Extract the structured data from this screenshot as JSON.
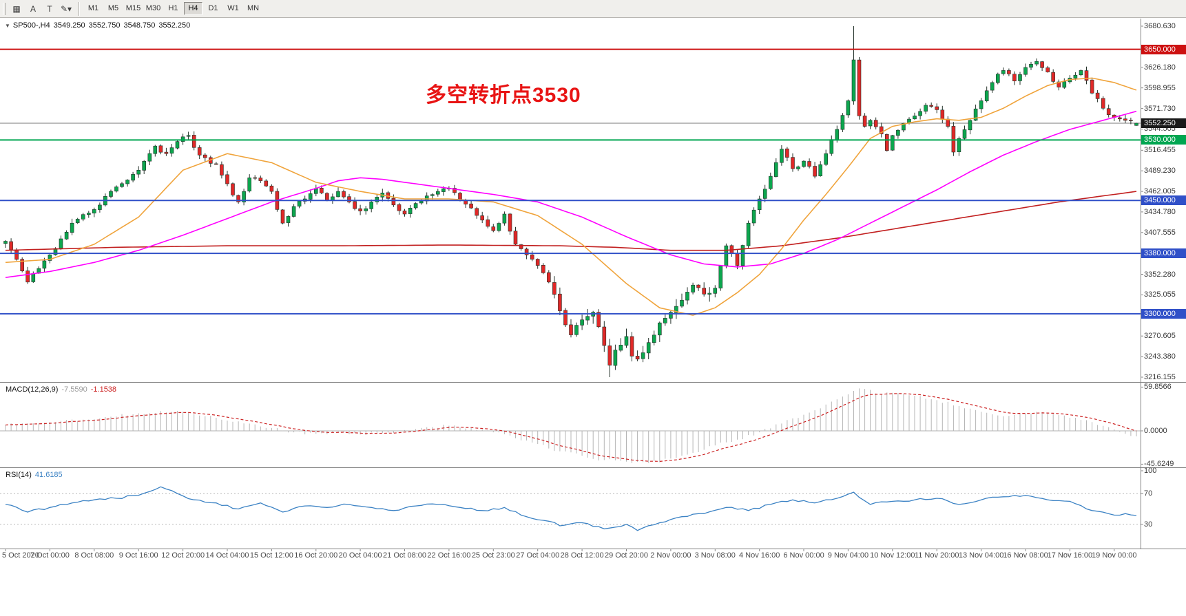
{
  "colors": {
    "up": "#0ca64e",
    "down": "#e02828",
    "candle_border": "#24322a",
    "ma_fast": "#f0a43c",
    "ma_mid": "#ff00ff",
    "ma_slow": "#c22020",
    "hline_red": "#cd1111",
    "hline_green": "#00a651",
    "hline_blue": "#3050c8",
    "price_line": "#787878",
    "price_badge_bg": "#1a1a1a",
    "macd_hist": "#b5b5b5",
    "macd_signal": "#cc2222",
    "rsi_line": "#3b82c4",
    "annotation": "#e81414",
    "panel_border": "#808080"
  },
  "toolbar": {
    "tools": [
      {
        "name": "chart-grid-icon",
        "glyph": "▦"
      },
      {
        "name": "cursor-tool",
        "glyph": "A"
      },
      {
        "name": "text-tool",
        "glyph": "T"
      },
      {
        "name": "draw-tools-dropdown",
        "glyph": "✎▾"
      }
    ],
    "timeframes": [
      "M1",
      "M5",
      "M15",
      "M30",
      "H1",
      "H4",
      "D1",
      "W1",
      "MN"
    ],
    "active_timeframe": "H4"
  },
  "chart": {
    "header": {
      "collapse_glyph": "▼",
      "symbol": "SP500-,H4",
      "open": "3549.250",
      "high": "3552.750",
      "low": "3548.750",
      "close": "3552.250"
    },
    "annotation": {
      "text": "多空转折点3530"
    },
    "price_axis": {
      "min": 3216.155,
      "max": 3680.63,
      "labels": [
        "3680.630",
        "3626.180",
        "3598.955",
        "3571.730",
        "3544.505",
        "3516.455",
        "3489.230",
        "3462.005",
        "3434.780",
        "3407.555",
        "3352.280",
        "3325.055",
        "3297.830",
        "3270.605",
        "3243.380",
        "3216.155"
      ]
    },
    "hlines": [
      {
        "price": 3650,
        "label": "3650.000",
        "color_key": "hline_red"
      },
      {
        "price": 3530,
        "label": "3530.000",
        "color_key": "hline_green"
      },
      {
        "price": 3450,
        "label": "3450.000",
        "color_key": "hline_blue"
      },
      {
        "price": 3380,
        "label": "3380.000",
        "color_key": "hline_blue"
      },
      {
        "price": 3300,
        "label": "3300.000",
        "color_key": "hline_blue"
      }
    ],
    "current_price": {
      "value": 3552.25,
      "label": "3552.250"
    },
    "time_axis": [
      {
        "bar": 0,
        "text": "5 Oct 2020"
      },
      {
        "bar": 8,
        "text": "7 Oct 00:00"
      },
      {
        "bar": 16,
        "text": "8 Oct 08:00"
      },
      {
        "bar": 24,
        "text": "9 Oct 16:00"
      },
      {
        "bar": 32,
        "text": "12 Oct 20:00"
      },
      {
        "bar": 40,
        "text": "14 Oct 04:00"
      },
      {
        "bar": 48,
        "text": "15 Oct 12:00"
      },
      {
        "bar": 56,
        "text": "16 Oct 20:00"
      },
      {
        "bar": 64,
        "text": "20 Oct 04:00"
      },
      {
        "bar": 72,
        "text": "21 Oct 08:00"
      },
      {
        "bar": 80,
        "text": "22 Oct 16:00"
      },
      {
        "bar": 88,
        "text": "25 Oct 23:00"
      },
      {
        "bar": 96,
        "text": "27 Oct 04:00"
      },
      {
        "bar": 104,
        "text": "28 Oct 12:00"
      },
      {
        "bar": 112,
        "text": "29 Oct 20:00"
      },
      {
        "bar": 120,
        "text": "2 Nov 00:00"
      },
      {
        "bar": 128,
        "text": "3 Nov 08:00"
      },
      {
        "bar": 136,
        "text": "4 Nov 16:00"
      },
      {
        "bar": 144,
        "text": "6 Nov 00:00"
      },
      {
        "bar": 152,
        "text": "9 Nov 04:00"
      },
      {
        "bar": 160,
        "text": "10 Nov 12:00"
      },
      {
        "bar": 168,
        "text": "11 Nov 20:00"
      },
      {
        "bar": 176,
        "text": "13 Nov 04:00"
      },
      {
        "bar": 184,
        "text": "16 Nov 08:00"
      },
      {
        "bar": 192,
        "text": "17 Nov 16:00"
      },
      {
        "bar": 200,
        "text": "19 Nov 00:00"
      }
    ]
  },
  "indicators": {
    "macd": {
      "name": "MACD(12,26,9)",
      "value_main": "-7.5590",
      "value_signal": "-1.1538",
      "axis": [
        {
          "v": 59.8566,
          "text": "59.8566"
        },
        {
          "v": 0,
          "text": "0.0000"
        },
        {
          "v": -45.6249,
          "text": "-45.6249"
        }
      ]
    },
    "rsi": {
      "name": "RSI(14)",
      "value": "41.6185",
      "levels": [
        70,
        30
      ],
      "axis": [
        {
          "v": 100,
          "text": "100"
        },
        {
          "v": 70,
          "text": "70"
        },
        {
          "v": 30,
          "text": "30"
        }
      ]
    }
  },
  "chart_data": {
    "type": "candlestick",
    "symbol": "SP500-",
    "timeframe": "H4",
    "bars": 205,
    "price_range": [
      3216.155,
      3680.63
    ],
    "close_anchors": [
      [
        0,
        3396
      ],
      [
        2,
        3372
      ],
      [
        4,
        3342
      ],
      [
        6,
        3360
      ],
      [
        8,
        3378
      ],
      [
        12,
        3420
      ],
      [
        16,
        3438
      ],
      [
        20,
        3468
      ],
      [
        24,
        3490
      ],
      [
        27,
        3522
      ],
      [
        29,
        3512
      ],
      [
        31,
        3528
      ],
      [
        33,
        3536
      ],
      [
        35,
        3510
      ],
      [
        38,
        3498
      ],
      [
        40,
        3472
      ],
      [
        42,
        3448
      ],
      [
        44,
        3480
      ],
      [
        46,
        3476
      ],
      [
        48,
        3462
      ],
      [
        50,
        3420
      ],
      [
        52,
        3442
      ],
      [
        54,
        3452
      ],
      [
        56,
        3466
      ],
      [
        58,
        3450
      ],
      [
        60,
        3462
      ],
      [
        62,
        3448
      ],
      [
        64,
        3436
      ],
      [
        66,
        3448
      ],
      [
        68,
        3460
      ],
      [
        70,
        3444
      ],
      [
        72,
        3432
      ],
      [
        74,
        3446
      ],
      [
        76,
        3456
      ],
      [
        78,
        3462
      ],
      [
        80,
        3466
      ],
      [
        82,
        3450
      ],
      [
        84,
        3440
      ],
      [
        86,
        3424
      ],
      [
        88,
        3410
      ],
      [
        90,
        3432
      ],
      [
        92,
        3392
      ],
      [
        94,
        3378
      ],
      [
        96,
        3364
      ],
      [
        98,
        3342
      ],
      [
        100,
        3304
      ],
      [
        102,
        3272
      ],
      [
        104,
        3292
      ],
      [
        106,
        3302
      ],
      [
        108,
        3258
      ],
      [
        109,
        3232
      ],
      [
        110,
        3252
      ],
      [
        112,
        3270
      ],
      [
        113,
        3244
      ],
      [
        114,
        3240
      ],
      [
        116,
        3262
      ],
      [
        118,
        3288
      ],
      [
        120,
        3302
      ],
      [
        122,
        3318
      ],
      [
        124,
        3338
      ],
      [
        126,
        3326
      ],
      [
        128,
        3334
      ],
      [
        130,
        3390
      ],
      [
        132,
        3364
      ],
      [
        134,
        3420
      ],
      [
        136,
        3452
      ],
      [
        138,
        3482
      ],
      [
        140,
        3518
      ],
      [
        142,
        3492
      ],
      [
        144,
        3502
      ],
      [
        146,
        3482
      ],
      [
        148,
        3512
      ],
      [
        150,
        3544
      ],
      [
        152,
        3582
      ],
      [
        153,
        3636
      ],
      [
        154,
        3562
      ],
      [
        155,
        3548
      ],
      [
        156,
        3556
      ],
      [
        158,
        3538
      ],
      [
        159,
        3516
      ],
      [
        160,
        3536
      ],
      [
        162,
        3552
      ],
      [
        164,
        3562
      ],
      [
        166,
        3576
      ],
      [
        168,
        3570
      ],
      [
        170,
        3548
      ],
      [
        171,
        3514
      ],
      [
        172,
        3532
      ],
      [
        174,
        3556
      ],
      [
        176,
        3582
      ],
      [
        178,
        3606
      ],
      [
        180,
        3622
      ],
      [
        182,
        3608
      ],
      [
        184,
        3626
      ],
      [
        186,
        3634
      ],
      [
        188,
        3620
      ],
      [
        190,
        3600
      ],
      [
        192,
        3612
      ],
      [
        194,
        3622
      ],
      [
        196,
        3592
      ],
      [
        198,
        3572
      ],
      [
        200,
        3560
      ],
      [
        202,
        3556
      ],
      [
        204,
        3552.25
      ]
    ],
    "wick_overrides": {
      "109": {
        "low": 3216.2
      },
      "153": {
        "high": 3680.6
      },
      "204": {
        "open": 3549.25,
        "high": 3552.75,
        "low": 3548.75,
        "close": 3552.25
      }
    },
    "ma_fast_anchors": [
      [
        0,
        3368
      ],
      [
        8,
        3372
      ],
      [
        16,
        3392
      ],
      [
        24,
        3428
      ],
      [
        32,
        3490
      ],
      [
        40,
        3512
      ],
      [
        48,
        3500
      ],
      [
        56,
        3474
      ],
      [
        64,
        3462
      ],
      [
        72,
        3452
      ],
      [
        80,
        3452
      ],
      [
        88,
        3448
      ],
      [
        96,
        3430
      ],
      [
        104,
        3392
      ],
      [
        112,
        3340
      ],
      [
        118,
        3308
      ],
      [
        124,
        3298
      ],
      [
        128,
        3308
      ],
      [
        132,
        3328
      ],
      [
        136,
        3352
      ],
      [
        140,
        3386
      ],
      [
        144,
        3424
      ],
      [
        148,
        3458
      ],
      [
        152,
        3494
      ],
      [
        156,
        3532
      ],
      [
        160,
        3548
      ],
      [
        164,
        3554
      ],
      [
        168,
        3558
      ],
      [
        172,
        3556
      ],
      [
        176,
        3560
      ],
      [
        180,
        3572
      ],
      [
        184,
        3588
      ],
      [
        188,
        3602
      ],
      [
        192,
        3610
      ],
      [
        196,
        3612
      ],
      [
        200,
        3606
      ],
      [
        204,
        3596
      ]
    ],
    "ma_mid_anchors": [
      [
        0,
        3348
      ],
      [
        8,
        3356
      ],
      [
        16,
        3368
      ],
      [
        24,
        3384
      ],
      [
        32,
        3404
      ],
      [
        40,
        3426
      ],
      [
        48,
        3448
      ],
      [
        56,
        3466
      ],
      [
        60,
        3476
      ],
      [
        64,
        3480
      ],
      [
        68,
        3478
      ],
      [
        72,
        3474
      ],
      [
        80,
        3466
      ],
      [
        88,
        3458
      ],
      [
        96,
        3448
      ],
      [
        104,
        3428
      ],
      [
        112,
        3402
      ],
      [
        120,
        3378
      ],
      [
        126,
        3366
      ],
      [
        132,
        3362
      ],
      [
        138,
        3366
      ],
      [
        144,
        3380
      ],
      [
        150,
        3398
      ],
      [
        156,
        3420
      ],
      [
        162,
        3442
      ],
      [
        168,
        3464
      ],
      [
        174,
        3488
      ],
      [
        180,
        3510
      ],
      [
        186,
        3528
      ],
      [
        192,
        3544
      ],
      [
        198,
        3556
      ],
      [
        204,
        3568
      ]
    ],
    "ma_slow_anchors": [
      [
        0,
        3384
      ],
      [
        20,
        3388
      ],
      [
        40,
        3390
      ],
      [
        60,
        3390
      ],
      [
        80,
        3391
      ],
      [
        100,
        3390
      ],
      [
        110,
        3388
      ],
      [
        120,
        3384
      ],
      [
        130,
        3384
      ],
      [
        140,
        3390
      ],
      [
        150,
        3400
      ],
      [
        160,
        3412
      ],
      [
        170,
        3424
      ],
      [
        180,
        3436
      ],
      [
        190,
        3448
      ],
      [
        200,
        3458
      ],
      [
        204,
        3462
      ]
    ],
    "macd_anchors": [
      [
        0,
        8
      ],
      [
        8,
        12
      ],
      [
        16,
        16
      ],
      [
        24,
        24
      ],
      [
        28,
        27
      ],
      [
        32,
        26
      ],
      [
        36,
        20
      ],
      [
        40,
        14
      ],
      [
        44,
        10
      ],
      [
        48,
        4
      ],
      [
        52,
        -2
      ],
      [
        56,
        -4
      ],
      [
        60,
        -2
      ],
      [
        64,
        -5
      ],
      [
        68,
        -3
      ],
      [
        72,
        1
      ],
      [
        76,
        5
      ],
      [
        80,
        7
      ],
      [
        84,
        4
      ],
      [
        88,
        -2
      ],
      [
        92,
        -10
      ],
      [
        96,
        -18
      ],
      [
        100,
        -28
      ],
      [
        104,
        -34
      ],
      [
        108,
        -40
      ],
      [
        112,
        -42
      ],
      [
        116,
        -44
      ],
      [
        120,
        -38
      ],
      [
        124,
        -30
      ],
      [
        128,
        -20
      ],
      [
        132,
        -12
      ],
      [
        136,
        -2
      ],
      [
        140,
        10
      ],
      [
        144,
        22
      ],
      [
        148,
        36
      ],
      [
        152,
        50
      ],
      [
        154,
        58
      ],
      [
        156,
        56
      ],
      [
        158,
        50
      ],
      [
        160,
        52
      ],
      [
        164,
        48
      ],
      [
        168,
        42
      ],
      [
        172,
        34
      ],
      [
        176,
        26
      ],
      [
        180,
        20
      ],
      [
        184,
        24
      ],
      [
        186,
        26
      ],
      [
        188,
        24
      ],
      [
        192,
        18
      ],
      [
        196,
        12
      ],
      [
        200,
        2
      ],
      [
        202,
        -4
      ],
      [
        204,
        -7.56
      ]
    ],
    "rsi_anchors": [
      [
        0,
        56
      ],
      [
        4,
        46
      ],
      [
        8,
        52
      ],
      [
        12,
        58
      ],
      [
        16,
        62
      ],
      [
        20,
        64
      ],
      [
        24,
        68
      ],
      [
        28,
        79
      ],
      [
        30,
        74
      ],
      [
        34,
        62
      ],
      [
        38,
        58
      ],
      [
        42,
        50
      ],
      [
        46,
        58
      ],
      [
        50,
        46
      ],
      [
        54,
        54
      ],
      [
        58,
        52
      ],
      [
        62,
        56
      ],
      [
        66,
        52
      ],
      [
        70,
        48
      ],
      [
        74,
        54
      ],
      [
        78,
        56
      ],
      [
        82,
        52
      ],
      [
        86,
        48
      ],
      [
        90,
        52
      ],
      [
        94,
        40
      ],
      [
        98,
        34
      ],
      [
        100,
        28
      ],
      [
        104,
        32
      ],
      [
        108,
        24
      ],
      [
        112,
        30
      ],
      [
        114,
        22
      ],
      [
        118,
        32
      ],
      [
        122,
        40
      ],
      [
        126,
        44
      ],
      [
        130,
        52
      ],
      [
        134,
        48
      ],
      [
        138,
        56
      ],
      [
        142,
        62
      ],
      [
        146,
        58
      ],
      [
        150,
        64
      ],
      [
        153,
        72
      ],
      [
        156,
        56
      ],
      [
        160,
        60
      ],
      [
        164,
        62
      ],
      [
        168,
        64
      ],
      [
        172,
        56
      ],
      [
        176,
        62
      ],
      [
        180,
        66
      ],
      [
        184,
        68
      ],
      [
        188,
        62
      ],
      [
        192,
        60
      ],
      [
        196,
        48
      ],
      [
        200,
        42
      ],
      [
        202,
        44
      ],
      [
        204,
        41.6
      ]
    ]
  }
}
